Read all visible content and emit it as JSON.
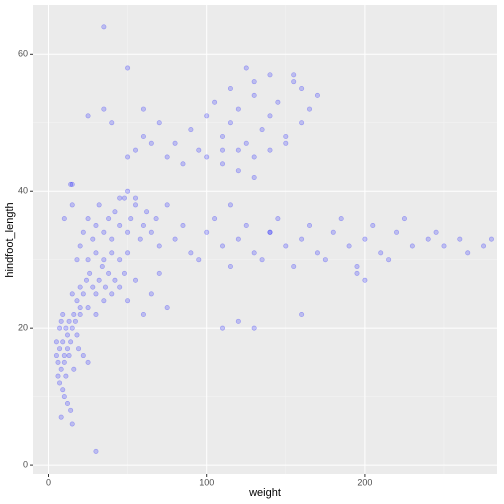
{
  "chart_data": {
    "type": "scatter",
    "x_label": "weight",
    "y_label": "hindfoot_length",
    "xlim": [
      -9.8,
      283.5
    ],
    "ylim": [
      -1.3,
      67.2
    ],
    "xticks": [
      0,
      100,
      200
    ],
    "yticks": [
      0,
      20,
      40,
      60
    ],
    "xminor": [
      50,
      150,
      250
    ],
    "yminor": [
      10,
      30,
      50
    ],
    "grid": true,
    "color": "#0000ff",
    "opacity": 0.2,
    "series": [
      {
        "x": [
          5,
          6,
          7,
          8,
          9,
          10,
          11,
          12,
          6,
          7,
          8,
          9,
          10,
          12,
          13,
          14,
          15,
          16,
          5,
          11,
          13,
          17,
          18,
          20,
          9,
          10,
          12,
          14,
          8,
          15,
          19,
          22,
          25,
          7,
          16,
          18,
          20,
          22,
          24,
          26,
          28,
          30,
          32,
          34,
          36,
          38,
          40,
          42,
          45,
          20,
          25,
          30,
          35,
          15,
          48,
          50,
          55,
          60,
          65,
          75,
          70,
          20,
          22,
          25,
          28,
          30,
          32,
          35,
          38,
          40,
          42,
          45,
          48,
          50,
          52,
          55,
          58,
          60,
          62,
          30,
          35,
          40,
          45,
          50,
          25,
          50,
          45,
          55,
          65,
          68,
          18,
          15,
          10,
          14,
          70,
          80,
          90,
          100,
          110,
          120,
          130,
          140,
          150,
          160,
          170,
          180,
          190,
          200,
          210,
          220,
          230,
          240,
          250,
          260,
          275,
          85,
          95,
          105,
          115,
          125,
          135,
          145,
          155,
          165,
          175,
          185,
          195,
          205,
          215,
          225,
          245,
          265,
          280,
          110,
          130,
          120,
          160,
          195,
          200,
          75,
          60,
          70,
          80,
          90,
          100,
          105,
          110,
          115,
          120,
          125,
          130,
          135,
          140,
          145,
          150,
          155,
          160,
          165,
          170,
          95,
          100,
          110,
          120,
          130,
          140,
          150,
          125,
          140,
          155,
          115,
          130,
          160,
          85,
          75,
          65,
          55,
          50,
          60,
          35,
          25,
          40,
          120,
          130,
          110,
          35,
          50,
          30,
          15,
          140,
          115
        ],
        "values": [
          16,
          15,
          17,
          14,
          18,
          16,
          20,
          19,
          13,
          12,
          21,
          22,
          15,
          17,
          21,
          18,
          20,
          22,
          18,
          13,
          16,
          21,
          19,
          22,
          11,
          10,
          9,
          8,
          7,
          6,
          17,
          16,
          15,
          20,
          14,
          24,
          26,
          25,
          27,
          28,
          26,
          25,
          27,
          29,
          26,
          28,
          25,
          27,
          26,
          23,
          23,
          22,
          24,
          25,
          28,
          24,
          27,
          22,
          25,
          23,
          28,
          32,
          34,
          36,
          33,
          35,
          38,
          34,
          36,
          33,
          37,
          35,
          39,
          34,
          36,
          38,
          33,
          35,
          37,
          31,
          30,
          31,
          30,
          31,
          30,
          40,
          39,
          39,
          34,
          36,
          30,
          38,
          36,
          41,
          32,
          33,
          31,
          34,
          32,
          33,
          31,
          34,
          32,
          33,
          31,
          34,
          32,
          33,
          31,
          34,
          32,
          33,
          32,
          33,
          32,
          35,
          30,
          36,
          29,
          35,
          30,
          36,
          29,
          35,
          30,
          36,
          29,
          35,
          30,
          36,
          34,
          31,
          33,
          20,
          20,
          21,
          22,
          28,
          27,
          38,
          48,
          50,
          47,
          49,
          51,
          53,
          48,
          50,
          52,
          47,
          54,
          49,
          51,
          53,
          48,
          56,
          50,
          52,
          54,
          46,
          45,
          46,
          46,
          45,
          46,
          47,
          58,
          57,
          57,
          55,
          56,
          55,
          44,
          45,
          47,
          46,
          45,
          52,
          52,
          51,
          50,
          43,
          42,
          44,
          64,
          58,
          2,
          41,
          34,
          38
        ]
      }
    ]
  }
}
